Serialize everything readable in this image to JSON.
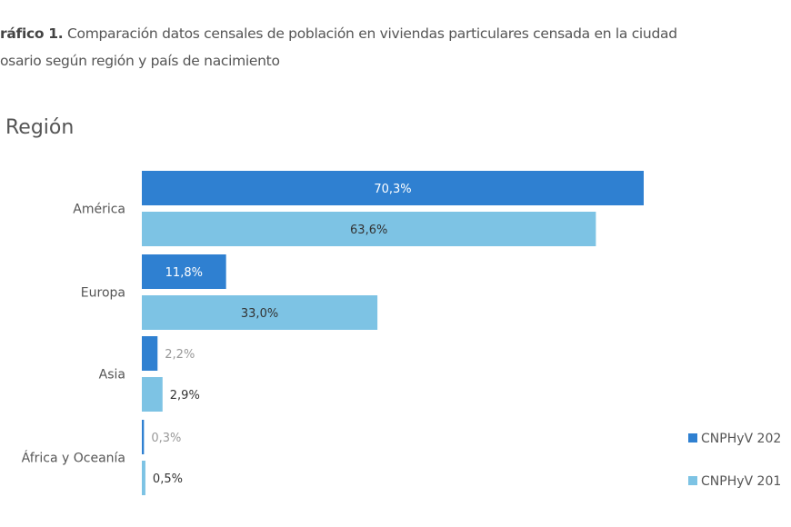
{
  "title": {
    "bold": "ráfico 1.",
    "rest": " Comparación datos censales de población en viviendas particulares censada en la ciudad",
    "line2": "osario según región y país de nacimiento"
  },
  "subtitle": "Región",
  "chart_data": {
    "type": "bar",
    "orientation": "horizontal",
    "categories": [
      "América",
      "Europa",
      "Asia",
      "África y Oceanía"
    ],
    "series": [
      {
        "name": "CNPHyV 202",
        "color": "#2f80d1",
        "values": [
          70.3,
          11.8,
          2.2,
          0.3
        ],
        "labels": [
          "70,3%",
          "11,8%",
          "2,2%",
          "0,3%"
        ]
      },
      {
        "name": "CNPHyV 201",
        "color": "#7dc3e4",
        "values": [
          63.6,
          33.0,
          2.9,
          0.5
        ],
        "labels": [
          "63,6%",
          "33,0%",
          "2,9%",
          "0,5%"
        ]
      }
    ],
    "xlim": [
      0,
      70.3
    ],
    "legend": "bottom-right",
    "grid": false
  }
}
